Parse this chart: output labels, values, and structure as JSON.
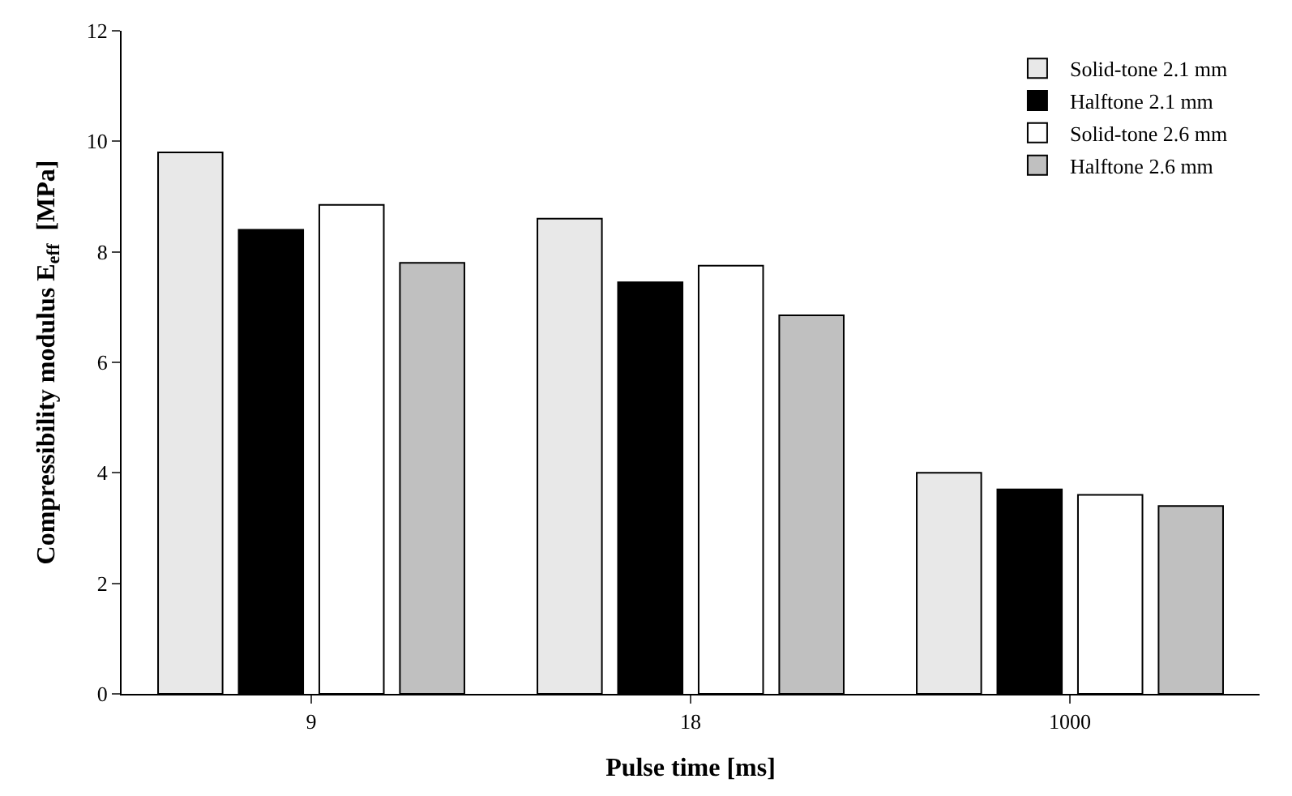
{
  "chart_data": {
    "type": "bar",
    "xlabel": "Pulse time [ms]",
    "ylabel": "Compressibility modulus E$_{eff}$  [MPa]",
    "categories": [
      "9",
      "18",
      "1000"
    ],
    "series": [
      {
        "name": "Solid-tone 2.1 mm",
        "color": "#e8e8e8",
        "values": [
          9.8,
          8.6,
          4.0
        ]
      },
      {
        "name": "Halftone 2.1 mm",
        "color": "#000000",
        "values": [
          8.4,
          7.45,
          3.7
        ]
      },
      {
        "name": "Solid-tone 2.6 mm",
        "color": "#ffffff",
        "values": [
          8.85,
          7.75,
          3.6
        ]
      },
      {
        "name": "Halftone 2.6 mm",
        "color": "#c0c0c0",
        "values": [
          7.8,
          6.85,
          3.4
        ]
      }
    ],
    "ylim": [
      0,
      12
    ],
    "yticks": [
      0,
      2,
      4,
      6,
      8,
      10,
      12
    ],
    "legend": "top right"
  }
}
